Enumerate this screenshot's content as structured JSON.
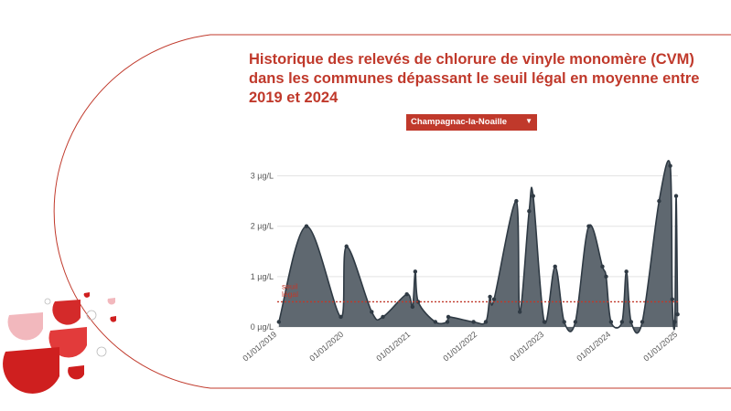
{
  "title": "Historique des relevés de chlorure de vinyle monomère (CVM) dans les communes dépassant le seuil légal en moyenne entre 2019 et 2024",
  "commune_select": {
    "value": "Champagnac-la-Noaille"
  },
  "colors": {
    "accent": "#c0392b",
    "area": "#5f6870",
    "line": "#2f3a44",
    "threshold": "#c0392b"
  },
  "chart_data": {
    "type": "area",
    "y_unit": "µg/L",
    "ylim": [
      0,
      3.3
    ],
    "y_ticks": [
      {
        "value": 0,
        "label": "0 µg/L"
      },
      {
        "value": 1,
        "label": "1 µg/L"
      },
      {
        "value": 2,
        "label": "2 µg/L"
      },
      {
        "value": 3,
        "label": "3 µg/L"
      }
    ],
    "x_range": [
      "2019-01-01",
      "2025-01-01"
    ],
    "x_ticks": [
      "01/01/2019",
      "01/01/2020",
      "01/01/2021",
      "01/01/2022",
      "01/01/2023",
      "01/01/2024",
      "01/01/2025"
    ],
    "grid": true,
    "threshold": {
      "value": 0.5,
      "label": "seuil légal"
    },
    "points": [
      {
        "x": "2019-01-10",
        "y": 0.1
      },
      {
        "x": "2019-06-10",
        "y": 2.0
      },
      {
        "x": "2019-12-15",
        "y": 0.2
      },
      {
        "x": "2020-01-15",
        "y": 1.6
      },
      {
        "x": "2020-06-01",
        "y": 0.3
      },
      {
        "x": "2020-08-01",
        "y": 0.2
      },
      {
        "x": "2020-12-10",
        "y": 0.65
      },
      {
        "x": "2021-01-10",
        "y": 0.4
      },
      {
        "x": "2021-01-25",
        "y": 1.1
      },
      {
        "x": "2021-02-10",
        "y": 0.5
      },
      {
        "x": "2021-05-15",
        "y": 0.1
      },
      {
        "x": "2021-07-20",
        "y": 0.1
      },
      {
        "x": "2021-07-25",
        "y": 0.2
      },
      {
        "x": "2021-12-10",
        "y": 0.1
      },
      {
        "x": "2022-02-15",
        "y": 0.1
      },
      {
        "x": "2022-03-10",
        "y": 0.6
      },
      {
        "x": "2022-04-01",
        "y": 0.55
      },
      {
        "x": "2022-08-01",
        "y": 2.5
      },
      {
        "x": "2022-08-20",
        "y": 0.3
      },
      {
        "x": "2022-10-10",
        "y": 2.3
      },
      {
        "x": "2022-11-01",
        "y": 2.6
      },
      {
        "x": "2023-01-01",
        "y": 0.1
      },
      {
        "x": "2023-03-01",
        "y": 1.2
      },
      {
        "x": "2023-04-20",
        "y": 0.1
      },
      {
        "x": "2023-06-20",
        "y": 0.1
      },
      {
        "x": "2023-09-01",
        "y": 2.0
      },
      {
        "x": "2023-11-15",
        "y": 1.2
      },
      {
        "x": "2023-12-05",
        "y": 1.0
      },
      {
        "x": "2024-01-01",
        "y": 0.1
      },
      {
        "x": "2024-03-01",
        "y": 0.1
      },
      {
        "x": "2024-03-25",
        "y": 1.1
      },
      {
        "x": "2024-04-20",
        "y": 0.1
      },
      {
        "x": "2024-06-20",
        "y": 0.1
      },
      {
        "x": "2024-09-20",
        "y": 2.5
      },
      {
        "x": "2024-11-20",
        "y": 3.2
      },
      {
        "x": "2024-12-01",
        "y": 0.55
      },
      {
        "x": "2024-12-15",
        "y": 0.1
      },
      {
        "x": "2024-12-22",
        "y": 2.6
      },
      {
        "x": "2024-12-30",
        "y": 0.25
      }
    ]
  }
}
